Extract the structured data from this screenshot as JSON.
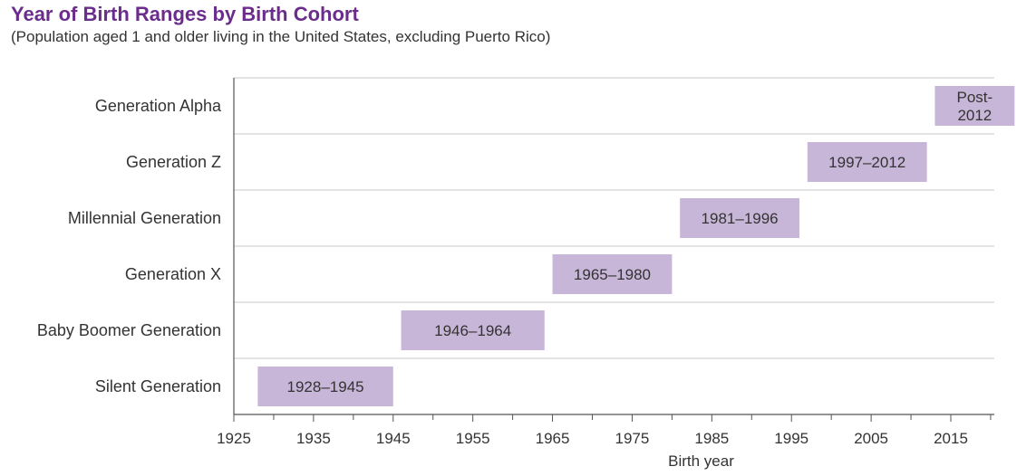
{
  "chart_data": {
    "type": "bar",
    "orientation": "horizontal-range",
    "title": "Year of Birth Ranges by Birth Cohort",
    "subtitle": "(Population aged 1 and older living in the United States, excluding Puerto Rico)",
    "xlabel": "Birth year",
    "ylabel": "",
    "xlim": [
      1925,
      2020
    ],
    "xticks": [
      1925,
      1935,
      1945,
      1955,
      1965,
      1975,
      1985,
      1995,
      2005,
      2015
    ],
    "grid": "horizontal",
    "bar_color": "#c8b6d8",
    "title_color": "#6b2d8c",
    "series": [
      {
        "name": "Generation Alpha",
        "start": 2013,
        "end": 2023,
        "label": "Post-\n2012"
      },
      {
        "name": "Generation Z",
        "start": 1997,
        "end": 2012,
        "label": "1997–2012"
      },
      {
        "name": "Millennial Generation",
        "start": 1981,
        "end": 1996,
        "label": "1981–1996"
      },
      {
        "name": "Generation X",
        "start": 1965,
        "end": 1980,
        "label": "1965–1980"
      },
      {
        "name": "Baby Boomer Generation",
        "start": 1946,
        "end": 1964,
        "label": "1946–1964"
      },
      {
        "name": "Silent Generation",
        "start": 1928,
        "end": 1945,
        "label": "1928–1945"
      }
    ]
  }
}
